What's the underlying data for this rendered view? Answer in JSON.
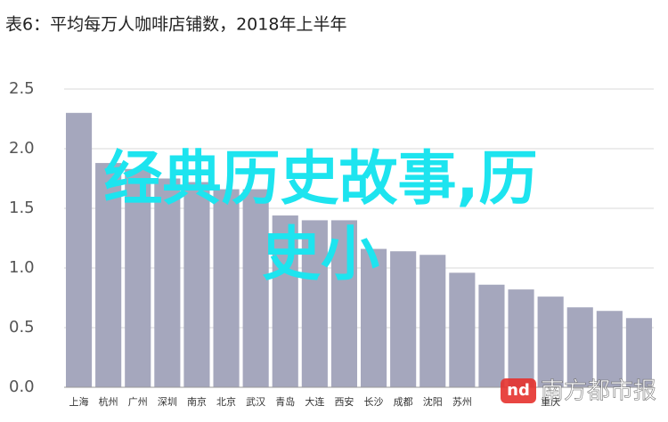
{
  "chart_data": {
    "type": "bar",
    "title": "表6：平均每万人咖啡店铺数，2018年上半年",
    "categories": [
      "上海",
      "杭州",
      "广州",
      "深圳",
      "南京",
      "北京",
      "武汉",
      "青岛",
      "大连",
      "西安",
      "长沙",
      "成都",
      "沈阳",
      "苏州",
      null,
      null,
      "重庆",
      null,
      null,
      null
    ],
    "values": [
      2.3,
      1.88,
      1.83,
      1.75,
      1.72,
      1.66,
      1.66,
      1.44,
      1.4,
      1.4,
      1.16,
      1.14,
      1.11,
      0.96,
      0.86,
      0.82,
      0.76,
      0.67,
      0.64,
      0.58
    ],
    "color": "#a5a7bd",
    "ylim": [
      0,
      2.5
    ],
    "yticks": [
      {
        "value": 0,
        "label": "0.0"
      },
      0.5,
      {
        "value": 1,
        "label": "1.0"
      },
      1.5,
      {
        "value": 2,
        "label": "2.0"
      },
      2.5
    ],
    "grid": true,
    "overlay_text": [
      "经典历史故事,历",
      "史小"
    ],
    "watermark": {
      "logo": "nd",
      "text": "南方都市报"
    }
  }
}
